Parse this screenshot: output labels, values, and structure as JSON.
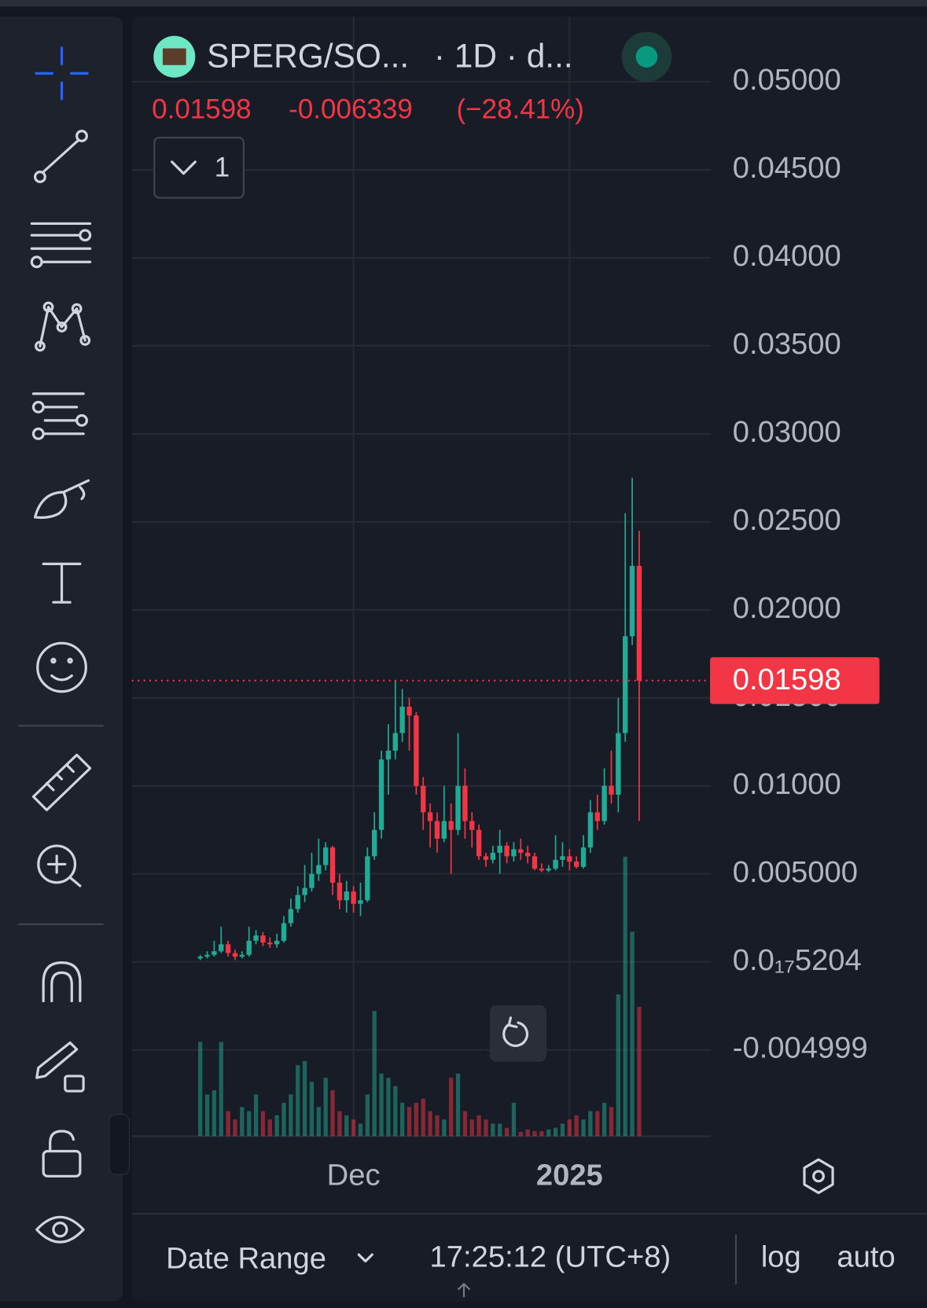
{
  "header": {
    "symbol": "SPERG/SO...",
    "interval": "· 1D · d...",
    "price": "0.01598",
    "change": "-0.006339",
    "change_pct": "(−28.41%)",
    "indicator_count": "1"
  },
  "chart_data": {
    "type": "candlestick",
    "up_color": "#22ab94",
    "down_color": "#f23645",
    "grid": true,
    "log": false,
    "ylim": [
      -0.0099,
      0.0537
    ],
    "yticks": [
      {
        "value": 0.05,
        "label": "0.05000"
      },
      {
        "value": 0.045,
        "label": "0.04500"
      },
      {
        "value": 0.04,
        "label": "0.04000"
      },
      {
        "value": 0.035,
        "label": "0.03500"
      },
      {
        "value": 0.03,
        "label": "0.03000"
      },
      {
        "value": 0.025,
        "label": "0.02500"
      },
      {
        "value": 0.02,
        "label": "0.02000"
      },
      {
        "value": 0.015,
        "label": "0.01500"
      },
      {
        "value": 0.01,
        "label": "0.01000"
      },
      {
        "value": 0.005,
        "label": "0.005000"
      },
      {
        "value": 0,
        "label": "0.0₁₇5204"
      },
      {
        "value": -0.004999,
        "label": "-0.004999"
      }
    ],
    "xticks": [
      {
        "value": 22,
        "label": "Dec"
      },
      {
        "value": 53,
        "label": "2025"
      }
    ],
    "last_price": {
      "value": 0.01598,
      "label": "0.01598"
    },
    "candles": [
      [
        0.0002,
        0.0004,
        0.0001,
        0.0003
      ],
      [
        0.0003,
        0.0006,
        0.0002,
        0.0004
      ],
      [
        0.0004,
        0.0012,
        0.0003,
        0.0006
      ],
      [
        0.0006,
        0.002,
        0.0005,
        0.001
      ],
      [
        0.001,
        0.0012,
        0.0003,
        0.0005
      ],
      [
        0.0005,
        0.0007,
        0.0001,
        0.0003
      ],
      [
        0.0003,
        0.0006,
        0.0002,
        0.0004
      ],
      [
        0.0004,
        0.002,
        0.0003,
        0.0012
      ],
      [
        0.0012,
        0.0018,
        0.001,
        0.0015
      ],
      [
        0.0015,
        0.0017,
        0.0009,
        0.0011
      ],
      [
        0.0011,
        0.0014,
        0.0008,
        0.001
      ],
      [
        0.001,
        0.0016,
        0.0008,
        0.0012
      ],
      [
        0.0012,
        0.0026,
        0.0011,
        0.0022
      ],
      [
        0.0022,
        0.0036,
        0.002,
        0.003
      ],
      [
        0.003,
        0.0043,
        0.0028,
        0.0038
      ],
      [
        0.0038,
        0.0055,
        0.0034,
        0.0042
      ],
      [
        0.0042,
        0.0062,
        0.004,
        0.005
      ],
      [
        0.005,
        0.007,
        0.0046,
        0.0055
      ],
      [
        0.0055,
        0.0068,
        0.0052,
        0.0065
      ],
      [
        0.0065,
        0.0066,
        0.0038,
        0.0045
      ],
      [
        0.0045,
        0.005,
        0.003,
        0.0035
      ],
      [
        0.0035,
        0.0046,
        0.0028,
        0.004
      ],
      [
        0.004,
        0.0043,
        0.0028,
        0.0033
      ],
      [
        0.0033,
        0.0045,
        0.0026,
        0.0035
      ],
      [
        0.0035,
        0.0065,
        0.0034,
        0.006
      ],
      [
        0.006,
        0.0085,
        0.0058,
        0.0075
      ],
      [
        0.0075,
        0.012,
        0.007,
        0.0115
      ],
      [
        0.0115,
        0.0135,
        0.0095,
        0.012
      ],
      [
        0.012,
        0.016,
        0.0115,
        0.013
      ],
      [
        0.013,
        0.0155,
        0.0125,
        0.0145
      ],
      [
        0.0145,
        0.015,
        0.012,
        0.014
      ],
      [
        0.014,
        0.0142,
        0.0095,
        0.01
      ],
      [
        0.01,
        0.0105,
        0.0075,
        0.0085
      ],
      [
        0.0085,
        0.009,
        0.0065,
        0.008
      ],
      [
        0.008,
        0.0085,
        0.0062,
        0.007
      ],
      [
        0.007,
        0.01,
        0.0068,
        0.008
      ],
      [
        0.008,
        0.009,
        0.005,
        0.0075
      ],
      [
        0.0075,
        0.013,
        0.0072,
        0.01
      ],
      [
        0.01,
        0.011,
        0.007,
        0.008
      ],
      [
        0.008,
        0.0085,
        0.0065,
        0.0075
      ],
      [
        0.0075,
        0.0078,
        0.0058,
        0.006
      ],
      [
        0.006,
        0.0062,
        0.0054,
        0.0058
      ],
      [
        0.0058,
        0.0066,
        0.0056,
        0.0062
      ],
      [
        0.0062,
        0.0075,
        0.005,
        0.0066
      ],
      [
        0.0066,
        0.0068,
        0.0056,
        0.006
      ],
      [
        0.006,
        0.0068,
        0.0057,
        0.0064
      ],
      [
        0.0064,
        0.007,
        0.0058,
        0.0062
      ],
      [
        0.0062,
        0.0066,
        0.0056,
        0.006
      ],
      [
        0.006,
        0.0062,
        0.0052,
        0.0053
      ],
      [
        0.0053,
        0.0056,
        0.0051,
        0.0052
      ],
      [
        0.0052,
        0.0055,
        0.0051,
        0.0053
      ],
      [
        0.0053,
        0.0072,
        0.0052,
        0.0058
      ],
      [
        0.0058,
        0.0068,
        0.0054,
        0.006
      ],
      [
        0.006,
        0.0064,
        0.0052,
        0.0057
      ],
      [
        0.0057,
        0.006,
        0.0053,
        0.0054
      ],
      [
        0.0054,
        0.0072,
        0.0053,
        0.0065
      ],
      [
        0.0065,
        0.0092,
        0.0062,
        0.0085
      ],
      [
        0.0085,
        0.0095,
        0.0075,
        0.008
      ],
      [
        0.008,
        0.011,
        0.0078,
        0.01
      ],
      [
        0.01,
        0.012,
        0.009,
        0.0095
      ],
      [
        0.0095,
        0.015,
        0.0085,
        0.013
      ],
      [
        0.013,
        0.0255,
        0.0125,
        0.0185
      ],
      [
        0.0185,
        0.0275,
        0.018,
        0.0225
      ],
      [
        0.0225,
        0.0245,
        0.008,
        0.01598
      ]
    ],
    "volumes": [
      113,
      50,
      55,
      113,
      30,
      20,
      35,
      30,
      50,
      30,
      20,
      25,
      40,
      50,
      85,
      90,
      65,
      35,
      70,
      55,
      30,
      25,
      20,
      15,
      50,
      150,
      75,
      70,
      60,
      40,
      35,
      40,
      45,
      30,
      25,
      20,
      70,
      75,
      30,
      20,
      25,
      20,
      15,
      15,
      10,
      40,
      5,
      8,
      6,
      6,
      8,
      10,
      15,
      20,
      25,
      20,
      30,
      30,
      40,
      35,
      170,
      335,
      245,
      155
    ]
  },
  "footer": {
    "date_range": "Date Range",
    "time": "17:25:12 (UTC+8)",
    "log": "log",
    "auto": "auto"
  }
}
